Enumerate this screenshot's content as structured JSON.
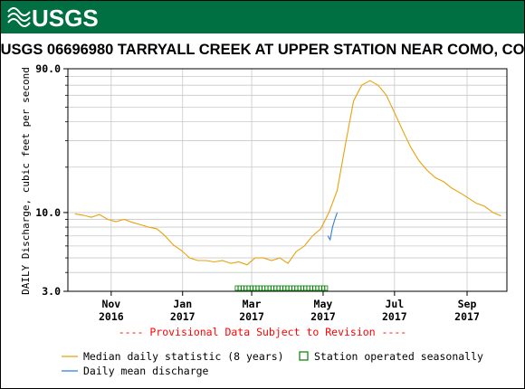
{
  "logo_text": "USGS",
  "colors": {
    "banner": "#006f41",
    "median_line": "#e8a20c",
    "mean_line": "#2a7fd6",
    "seasonal_marker": "#008000",
    "provisional_text": "#ff0000",
    "grid": "#c8c8c8"
  },
  "chart_data": {
    "type": "line",
    "title": "USGS 06696980 TARRYALL CREEK AT UPPER STATION NEAR COMO, CO",
    "ylabel": "DAILY Discharge, cubic feet per second",
    "yscale": "log",
    "ylim": [
      3.0,
      90.0
    ],
    "y_tick_labels": [
      "3.0",
      "10.0",
      "90.0"
    ],
    "x_ticks": [
      {
        "month": "Nov",
        "year": "2016",
        "date": "2016-11-01"
      },
      {
        "month": "Jan",
        "year": "2017",
        "date": "2017-01-01"
      },
      {
        "month": "Mar",
        "year": "2017",
        "date": "2017-03-01"
      },
      {
        "month": "May",
        "year": "2017",
        "date": "2017-05-01"
      },
      {
        "month": "Jul",
        "year": "2017",
        "date": "2017-07-01"
      },
      {
        "month": "Sep",
        "year": "2017",
        "date": "2017-09-01"
      }
    ],
    "grid": true,
    "provisional_note": "---- Provisional Data Subject to Revision ----",
    "series": [
      {
        "name": "Median daily statistic (8 years)",
        "x": [
          "2016-10-01",
          "2016-10-08",
          "2016-10-15",
          "2016-10-22",
          "2016-10-29",
          "2016-11-05",
          "2016-11-12",
          "2016-11-19",
          "2016-11-26",
          "2016-12-03",
          "2016-12-10",
          "2016-12-17",
          "2016-12-24",
          "2016-12-31",
          "2017-01-07",
          "2017-01-14",
          "2017-01-21",
          "2017-01-28",
          "2017-02-04",
          "2017-02-11",
          "2017-02-18",
          "2017-02-25",
          "2017-03-04",
          "2017-03-11",
          "2017-03-18",
          "2017-03-25",
          "2017-04-01",
          "2017-04-08",
          "2017-04-15",
          "2017-04-22",
          "2017-04-29",
          "2017-05-06",
          "2017-05-13",
          "2017-05-20",
          "2017-05-27",
          "2017-06-03",
          "2017-06-10",
          "2017-06-17",
          "2017-06-24",
          "2017-07-01",
          "2017-07-08",
          "2017-07-15",
          "2017-07-22",
          "2017-07-29",
          "2017-08-05",
          "2017-08-12",
          "2017-08-19",
          "2017-08-26",
          "2017-09-02",
          "2017-09-09",
          "2017-09-16",
          "2017-09-23",
          "2017-09-30"
        ],
        "values": [
          9.8,
          9.6,
          9.3,
          9.7,
          9.0,
          8.7,
          9.0,
          8.6,
          8.3,
          8.0,
          7.8,
          7.0,
          6.1,
          5.6,
          5.0,
          4.8,
          4.8,
          4.7,
          4.8,
          4.6,
          4.7,
          4.5,
          5.0,
          5.0,
          4.8,
          5.0,
          4.6,
          5.5,
          6.0,
          7.0,
          7.8,
          10.0,
          14.0,
          28.0,
          55.0,
          70.0,
          75.0,
          70.0,
          60.0,
          46.0,
          35.0,
          27.0,
          22.0,
          19.0,
          17.0,
          16.0,
          14.5,
          13.5,
          12.5,
          11.5,
          11.0,
          10.0,
          9.5
        ]
      },
      {
        "name": "Daily mean discharge",
        "x": [
          "2017-05-05",
          "2017-05-07",
          "2017-05-09",
          "2017-05-11",
          "2017-05-13"
        ],
        "values": [
          7.0,
          6.6,
          8.0,
          9.0,
          10.0
        ]
      }
    ],
    "seasonal_markers": {
      "name": "Station operated seasonally",
      "start": "2017-02-15",
      "end": "2017-05-05"
    }
  }
}
